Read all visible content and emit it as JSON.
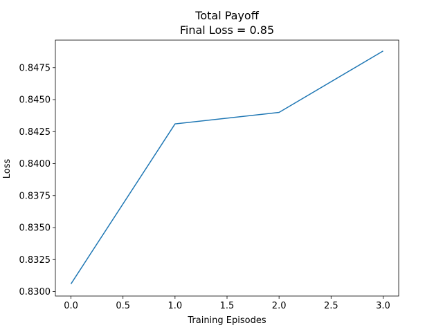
{
  "chart_data": {
    "type": "line",
    "title": "Total Payoff",
    "subtitle": "Final Loss = 0.85",
    "xlabel": "Training Episodes",
    "ylabel": "Loss",
    "x": [
      0,
      1,
      2,
      3
    ],
    "series": [
      {
        "values": [
          0.8306,
          0.8431,
          0.844,
          0.8488
        ],
        "color": "#1f77b4"
      }
    ],
    "xlim": [
      -0.15,
      3.15
    ],
    "ylim": [
      0.82965,
      0.84965
    ],
    "xticks": [
      0.0,
      0.5,
      1.0,
      1.5,
      2.0,
      2.5,
      3.0
    ],
    "xtick_labels": [
      "0.0",
      "0.5",
      "1.0",
      "1.5",
      "2.0",
      "2.5",
      "3.0"
    ],
    "yticks": [
      0.83,
      0.8325,
      0.835,
      0.8375,
      0.84,
      0.8425,
      0.845,
      0.8475
    ],
    "ytick_labels": [
      "0.8300",
      "0.8325",
      "0.8350",
      "0.8375",
      "0.8400",
      "0.8425",
      "0.8450",
      "0.8475"
    ],
    "grid": false,
    "legend": "none"
  }
}
